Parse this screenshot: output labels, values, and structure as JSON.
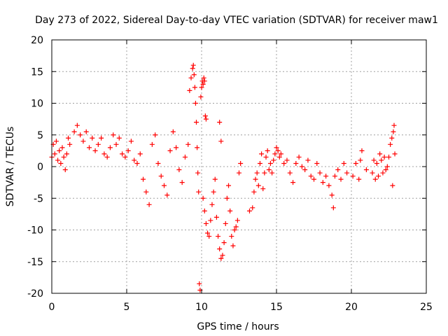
{
  "chart_data": {
    "type": "scatter",
    "title": "Day 273 of 2022, Sidereal Day-to-day VTEC variation (SDTVAR) for receiver maw1",
    "xlabel": "GPS time / hours",
    "ylabel": "SDTVAR / TECUs",
    "xlim": [
      0,
      25
    ],
    "ylim": [
      -20,
      20
    ],
    "xticks": [
      0,
      5,
      10,
      15,
      20,
      25
    ],
    "xtick_labels": [
      "0",
      "5",
      "10",
      "15",
      "20",
      "25"
    ],
    "yticks": [
      -20,
      -15,
      -10,
      -5,
      0,
      5,
      10,
      15,
      20
    ],
    "ytick_labels": [
      "-20",
      "-15",
      "-10",
      "-5",
      "0",
      "5",
      "10",
      "15",
      "20"
    ],
    "grid": true,
    "marker": "+",
    "color": "#ff0000",
    "series": [
      {
        "name": "SDTVAR",
        "points": [
          [
            0.0,
            1.5
          ],
          [
            0.1,
            3.5
          ],
          [
            0.2,
            2.0
          ],
          [
            0.3,
            4.0
          ],
          [
            0.4,
            1.0
          ],
          [
            0.5,
            2.5
          ],
          [
            0.6,
            0.5
          ],
          [
            0.7,
            3.0
          ],
          [
            0.8,
            1.5
          ],
          [
            0.9,
            -0.5
          ],
          [
            1.0,
            2.0
          ],
          [
            1.1,
            4.5
          ],
          [
            1.2,
            3.5
          ],
          [
            1.5,
            5.5
          ],
          [
            1.7,
            6.5
          ],
          [
            1.9,
            5.0
          ],
          [
            2.1,
            4.0
          ],
          [
            2.3,
            5.5
          ],
          [
            2.5,
            3.0
          ],
          [
            2.7,
            4.5
          ],
          [
            2.9,
            2.5
          ],
          [
            3.1,
            3.5
          ],
          [
            3.3,
            4.5
          ],
          [
            3.5,
            2.0
          ],
          [
            3.7,
            1.5
          ],
          [
            3.9,
            3.0
          ],
          [
            4.1,
            5.0
          ],
          [
            4.3,
            3.5
          ],
          [
            4.5,
            4.5
          ],
          [
            4.7,
            2.0
          ],
          [
            4.9,
            1.5
          ],
          [
            5.1,
            2.5
          ],
          [
            5.3,
            4.0
          ],
          [
            5.5,
            1.0
          ],
          [
            5.7,
            0.5
          ],
          [
            5.9,
            2.0
          ],
          [
            6.1,
            -2.0
          ],
          [
            6.3,
            -4.0
          ],
          [
            6.5,
            -6.0
          ],
          [
            6.7,
            3.5
          ],
          [
            6.9,
            5.0
          ],
          [
            7.1,
            0.5
          ],
          [
            7.3,
            -1.5
          ],
          [
            7.5,
            -3.0
          ],
          [
            7.7,
            -4.5
          ],
          [
            7.9,
            2.5
          ],
          [
            8.1,
            5.5
          ],
          [
            8.3,
            3.0
          ],
          [
            8.5,
            -0.5
          ],
          [
            8.7,
            -2.5
          ],
          [
            8.9,
            1.5
          ],
          [
            9.1,
            3.5
          ],
          [
            9.2,
            12.0
          ],
          [
            9.3,
            14.0
          ],
          [
            9.4,
            15.5
          ],
          [
            9.45,
            16.0
          ],
          [
            9.5,
            14.5
          ],
          [
            9.55,
            12.5
          ],
          [
            9.6,
            10.0
          ],
          [
            9.65,
            7.0
          ],
          [
            9.7,
            3.0
          ],
          [
            9.75,
            -1.0
          ],
          [
            9.8,
            -4.0
          ],
          [
            9.85,
            -18.5
          ],
          [
            9.9,
            -19.5
          ],
          [
            9.95,
            11.0
          ],
          [
            10.0,
            12.5
          ],
          [
            10.05,
            13.5
          ],
          [
            10.1,
            13.0
          ],
          [
            10.15,
            14.0
          ],
          [
            10.2,
            13.5
          ],
          [
            10.25,
            8.0
          ],
          [
            10.3,
            7.5
          ],
          [
            10.1,
            -5.0
          ],
          [
            10.2,
            -7.0
          ],
          [
            10.3,
            -9.0
          ],
          [
            10.4,
            -10.5
          ],
          [
            10.5,
            -11.0
          ],
          [
            10.6,
            -8.5
          ],
          [
            10.7,
            -6.0
          ],
          [
            10.8,
            -4.0
          ],
          [
            10.9,
            -2.0
          ],
          [
            11.0,
            -8.0
          ],
          [
            11.1,
            -11.0
          ],
          [
            11.2,
            -13.0
          ],
          [
            11.3,
            -14.5
          ],
          [
            11.4,
            -14.0
          ],
          [
            11.5,
            -12.0
          ],
          [
            11.6,
            -9.0
          ],
          [
            11.2,
            7.0
          ],
          [
            11.3,
            4.0
          ],
          [
            11.7,
            -5.0
          ],
          [
            11.8,
            -3.0
          ],
          [
            11.9,
            -7.0
          ],
          [
            12.0,
            -11.0
          ],
          [
            12.1,
            -12.5
          ],
          [
            12.2,
            -10.0
          ],
          [
            12.3,
            -9.5
          ],
          [
            12.4,
            -8.5
          ],
          [
            12.5,
            -1.0
          ],
          [
            12.6,
            0.5
          ],
          [
            13.2,
            -7.0
          ],
          [
            13.4,
            -6.5
          ],
          [
            13.5,
            -4.0
          ],
          [
            13.6,
            -2.0
          ],
          [
            13.7,
            -1.0
          ],
          [
            13.8,
            -3.0
          ],
          [
            13.9,
            0.5
          ],
          [
            14.0,
            2.0
          ],
          [
            14.1,
            -3.5
          ],
          [
            14.2,
            -1.0
          ],
          [
            14.3,
            1.5
          ],
          [
            14.4,
            2.5
          ],
          [
            14.5,
            -0.5
          ],
          [
            14.6,
            0.5
          ],
          [
            14.7,
            -1.0
          ],
          [
            14.8,
            1.0
          ],
          [
            14.9,
            2.0
          ],
          [
            15.0,
            3.0
          ],
          [
            15.1,
            2.5
          ],
          [
            15.2,
            1.5
          ],
          [
            15.3,
            2.0
          ],
          [
            15.5,
            0.5
          ],
          [
            15.7,
            1.0
          ],
          [
            15.9,
            -1.0
          ],
          [
            16.1,
            -2.5
          ],
          [
            16.3,
            0.5
          ],
          [
            16.5,
            1.5
          ],
          [
            16.7,
            0.0
          ],
          [
            16.9,
            -0.5
          ],
          [
            17.1,
            1.0
          ],
          [
            17.3,
            -1.5
          ],
          [
            17.5,
            -2.0
          ],
          [
            17.7,
            0.5
          ],
          [
            17.9,
            -1.0
          ],
          [
            18.1,
            -2.5
          ],
          [
            18.3,
            -1.5
          ],
          [
            18.5,
            -3.0
          ],
          [
            18.7,
            -4.5
          ],
          [
            18.8,
            -6.5
          ],
          [
            18.9,
            -1.5
          ],
          [
            19.1,
            -0.5
          ],
          [
            19.3,
            -2.0
          ],
          [
            19.5,
            0.5
          ],
          [
            19.7,
            -1.0
          ],
          [
            20.1,
            -1.5
          ],
          [
            20.3,
            0.5
          ],
          [
            20.5,
            -2.0
          ],
          [
            20.6,
            1.0
          ],
          [
            20.7,
            2.5
          ],
          [
            21.0,
            -0.5
          ],
          [
            21.4,
            -1.0
          ],
          [
            21.5,
            1.0
          ],
          [
            21.6,
            -2.0
          ],
          [
            21.7,
            0.5
          ],
          [
            21.8,
            -1.5
          ],
          [
            21.9,
            2.0
          ],
          [
            22.0,
            1.0
          ],
          [
            22.1,
            -1.0
          ],
          [
            22.2,
            1.5
          ],
          [
            22.3,
            -0.5
          ],
          [
            22.4,
            0.0
          ],
          [
            22.5,
            1.5
          ],
          [
            22.6,
            3.5
          ],
          [
            22.7,
            4.5
          ],
          [
            22.75,
            -3.0
          ],
          [
            22.8,
            5.5
          ],
          [
            22.85,
            6.5
          ],
          [
            22.9,
            2.0
          ]
        ]
      }
    ]
  }
}
